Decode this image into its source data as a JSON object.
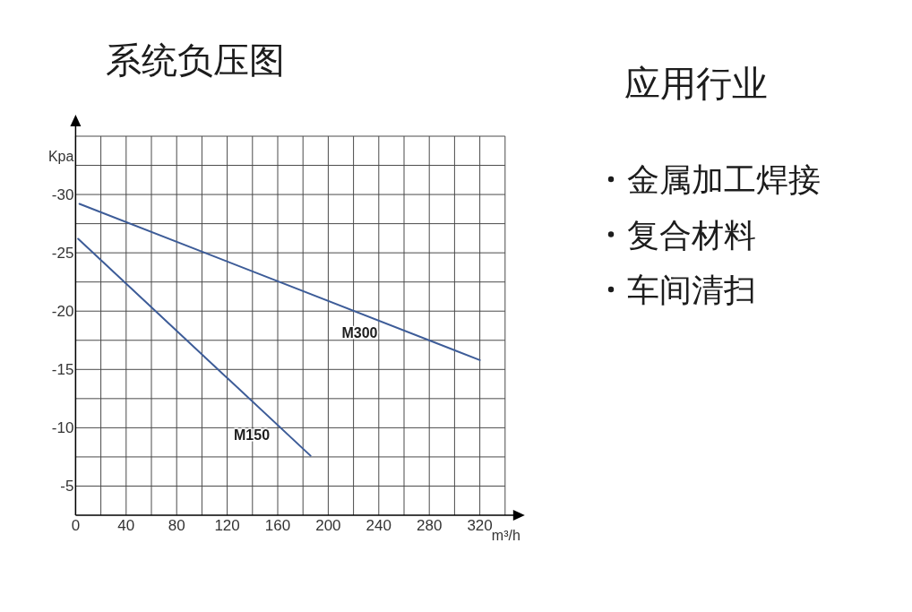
{
  "chart_data": [
    {
      "type": "line",
      "title": "系统负压图",
      "xlabel": "m³/h",
      "ylabel": "Kpa",
      "xlim": [
        0,
        340
      ],
      "xticks": [
        0,
        {
          "value": 20,
          "label": null
        },
        40,
        {
          "value": 60,
          "label": null
        },
        80,
        {
          "value": 100,
          "label": null
        },
        120,
        {
          "value": 140,
          "label": null
        },
        160,
        {
          "value": 180,
          "label": null
        },
        200,
        {
          "value": 220,
          "label": null
        },
        240,
        {
          "value": 260,
          "label": null
        },
        280,
        {
          "value": 300,
          "label": null
        },
        320,
        {
          "value": 340,
          "label": null
        }
      ],
      "ylim": [
        -2.5,
        -35
      ],
      "yticks": [
        {
          "value": -35,
          "label": null
        },
        {
          "value": -32.5,
          "label": null
        },
        -30,
        {
          "value": -27.5,
          "label": null
        },
        -25,
        {
          "value": -22.5,
          "label": null
        },
        -20,
        {
          "value": -17.5,
          "label": null
        },
        -15,
        {
          "value": -12.5,
          "label": null
        },
        -10,
        {
          "value": -7.5,
          "label": null
        },
        -5
      ],
      "grid": true,
      "series": [
        {
          "name": "M300",
          "color": "#3d5c98",
          "x": [
            3,
            320
          ],
          "values": [
            -29.2,
            -15.8
          ]
        },
        {
          "name": "M150",
          "color": "#3d5c98",
          "x": [
            2,
            186
          ],
          "values": [
            -26.2,
            -7.6
          ]
        }
      ]
    },
    {
      "type": "other",
      "title": "应用行业",
      "annotations": [
        "金属加工焊接",
        "复合材料",
        "车间清扫"
      ]
    }
  ]
}
